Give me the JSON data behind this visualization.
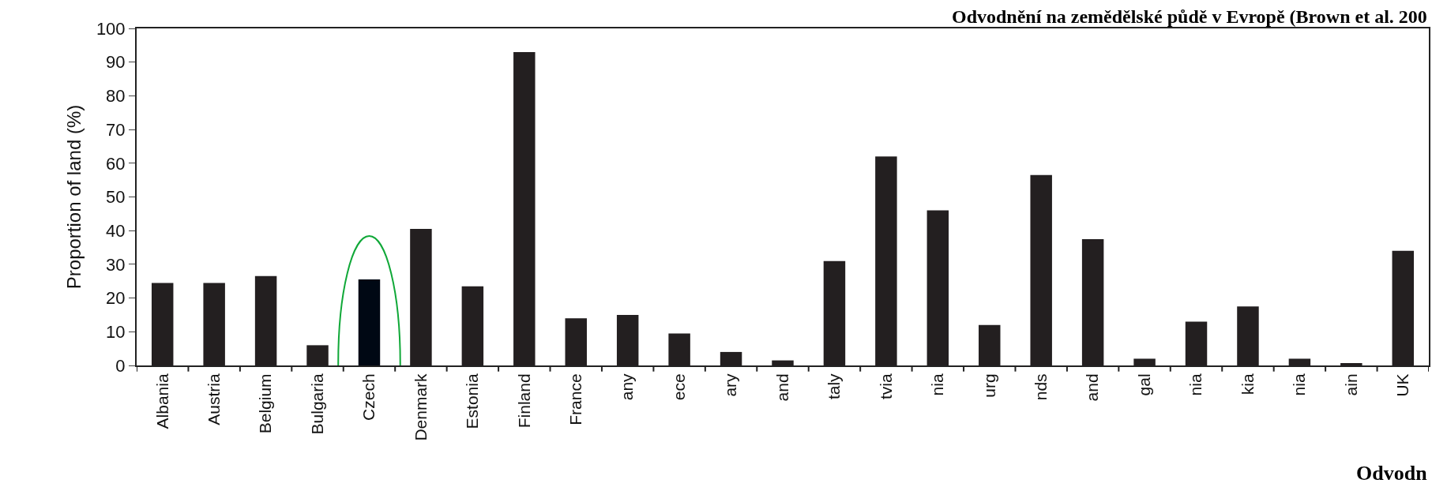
{
  "chart_data": {
    "type": "bar",
    "title": "Odvodnění na zemědělské půdě v Evropě (Brown et al. 200",
    "ylabel": "Proportion of land (%)",
    "annotations": [
      "Odvodn"
    ],
    "categories": [
      "Albania",
      "Austria",
      "Belgium",
      "Bulgaria",
      "Czech",
      "Denmark",
      "Estonia",
      "Finland",
      "France",
      "any",
      "ece",
      "ary",
      "and",
      "taly",
      "tvia",
      "nia",
      "urg",
      "nds",
      "and",
      "gal",
      "nia",
      "kia",
      "nia",
      "ain",
      "UK"
    ],
    "values": [
      24.5,
      24.5,
      26.5,
      6,
      25.5,
      40.5,
      23.5,
      93,
      14,
      15,
      9.5,
      4,
      1.5,
      31,
      62,
      46,
      12,
      56.5,
      37.5,
      2,
      13,
      17.5,
      2,
      0.7,
      34
    ],
    "colors": [
      "#231f20",
      "#231f20",
      "#231f20",
      "#231f20",
      "#000814",
      "#231f20",
      "#231f20",
      "#231f20",
      "#231f20",
      "#231f20",
      "#231f20",
      "#231f20",
      "#231f20",
      "#231f20",
      "#231f20",
      "#231f20",
      "#231f20",
      "#231f20",
      "#231f20",
      "#231f20",
      "#231f20",
      "#231f20",
      "#231f20",
      "#231f20",
      "#231f20"
    ],
    "ylim": [
      0,
      100
    ],
    "yticks": [
      0,
      10,
      20,
      30,
      40,
      50,
      60,
      70,
      80,
      90,
      100
    ]
  }
}
